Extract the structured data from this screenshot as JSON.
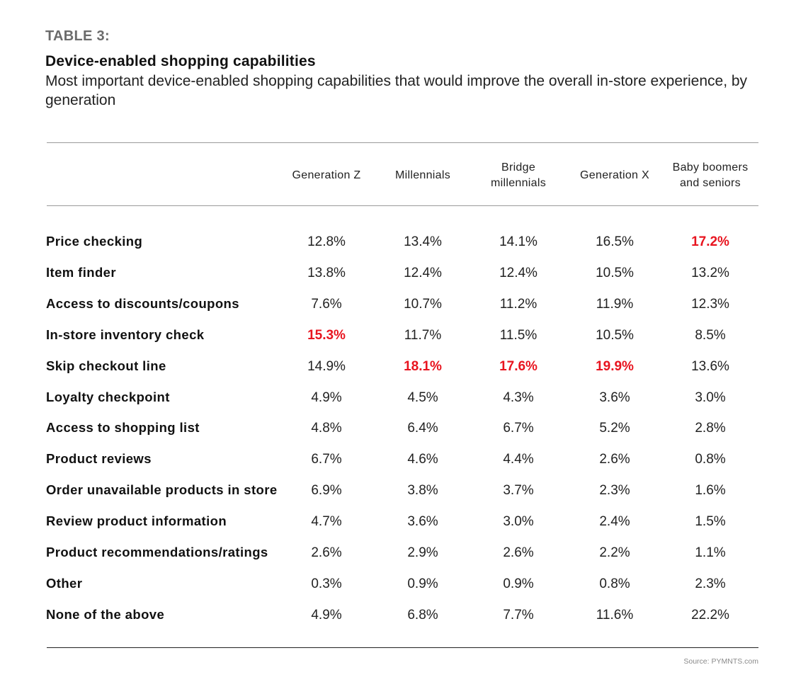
{
  "header": {
    "table_label": "TABLE 3:",
    "title": "Device-enabled shopping capabilities",
    "subtitle": "Most important device-enabled shopping capabilities that would improve the overall in-store experience, by generation"
  },
  "chart_data": {
    "type": "table",
    "title": "Device-enabled shopping capabilities",
    "columns": [
      "Generation Z",
      "Millennials",
      "Bridge millennials",
      "Generation X",
      "Baby boomers and seniors"
    ],
    "column_labels": [
      [
        "Generation Z"
      ],
      [
        "Millennials"
      ],
      [
        "Bridge",
        "millennials"
      ],
      [
        "Generation X"
      ],
      [
        "Baby boomers",
        "and seniors"
      ]
    ],
    "rows": [
      {
        "label": "Price checking",
        "values": [
          "12.8%",
          "13.4%",
          "14.1%",
          "16.5%",
          "17.2%"
        ],
        "highlight": [
          false,
          false,
          false,
          false,
          true
        ]
      },
      {
        "label": "Item finder",
        "values": [
          "13.8%",
          "12.4%",
          "12.4%",
          "10.5%",
          "13.2%"
        ],
        "highlight": [
          false,
          false,
          false,
          false,
          false
        ]
      },
      {
        "label": "Access to discounts/coupons",
        "values": [
          "7.6%",
          "10.7%",
          "11.2%",
          "11.9%",
          "12.3%"
        ],
        "highlight": [
          false,
          false,
          false,
          false,
          false
        ]
      },
      {
        "label": "In-store inventory check",
        "values": [
          "15.3%",
          "11.7%",
          "11.5%",
          "10.5%",
          "8.5%"
        ],
        "highlight": [
          true,
          false,
          false,
          false,
          false
        ]
      },
      {
        "label": "Skip checkout line",
        "values": [
          "14.9%",
          "18.1%",
          "17.6%",
          "19.9%",
          "13.6%"
        ],
        "highlight": [
          false,
          true,
          true,
          true,
          false
        ]
      },
      {
        "label": "Loyalty checkpoint",
        "values": [
          "4.9%",
          "4.5%",
          "4.3%",
          "3.6%",
          "3.0%"
        ],
        "highlight": [
          false,
          false,
          false,
          false,
          false
        ]
      },
      {
        "label": "Access to shopping list",
        "values": [
          "4.8%",
          "6.4%",
          "6.7%",
          "5.2%",
          "2.8%"
        ],
        "highlight": [
          false,
          false,
          false,
          false,
          false
        ]
      },
      {
        "label": "Product reviews",
        "values": [
          "6.7%",
          "4.6%",
          "4.4%",
          "2.6%",
          "0.8%"
        ],
        "highlight": [
          false,
          false,
          false,
          false,
          false
        ]
      },
      {
        "label": "Order unavailable products in store",
        "values": [
          "6.9%",
          "3.8%",
          "3.7%",
          "2.3%",
          "1.6%"
        ],
        "highlight": [
          false,
          false,
          false,
          false,
          false
        ]
      },
      {
        "label": "Review product information",
        "values": [
          "4.7%",
          "3.6%",
          "3.0%",
          "2.4%",
          "1.5%"
        ],
        "highlight": [
          false,
          false,
          false,
          false,
          false
        ]
      },
      {
        "label": "Product recommendations/ratings",
        "values": [
          "2.6%",
          "2.9%",
          "2.6%",
          "2.2%",
          "1.1%"
        ],
        "highlight": [
          false,
          false,
          false,
          false,
          false
        ]
      },
      {
        "label": "Other",
        "values": [
          "0.3%",
          "0.9%",
          "0.9%",
          "0.8%",
          "2.3%"
        ],
        "highlight": [
          false,
          false,
          false,
          false,
          false
        ]
      },
      {
        "label": "None of the above",
        "values": [
          "4.9%",
          "6.8%",
          "7.7%",
          "11.6%",
          "22.2%"
        ],
        "highlight": [
          false,
          false,
          false,
          false,
          false
        ]
      }
    ],
    "highlight_color": "#e8141f"
  },
  "footer": {
    "source": "Source: PYMNTS.com"
  }
}
